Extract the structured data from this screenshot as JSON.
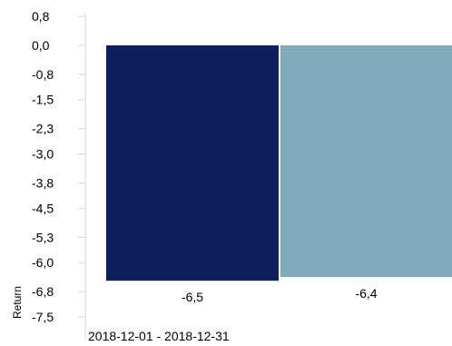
{
  "chart_data": {
    "type": "bar",
    "title": "",
    "xlabel": "",
    "ylabel": "Return",
    "categories": [
      "2018-12-01 - 2018-12-31"
    ],
    "series": [
      {
        "color": "#0e1f5b",
        "values": [
          -6.5
        ]
      },
      {
        "color": "#80aabb",
        "values": [
          -6.4
        ]
      }
    ],
    "data_labels": [
      "-6,5",
      "-6,4"
    ],
    "yticks": [
      0.8,
      0.0,
      -0.8,
      -1.5,
      -2.3,
      -3.0,
      -3.8,
      -4.5,
      -5.3,
      -6.0,
      -6.8,
      -7.5
    ],
    "ytick_labels": [
      "0,8",
      "0,0",
      "-0,8",
      "-1,5",
      "-2,3",
      "-3,0",
      "-3,8",
      "-4,5",
      "-5,3",
      "-6,0",
      "-6,8",
      "-7,5"
    ],
    "ylim": [
      -7.5,
      0.8
    ],
    "grid": false,
    "legend": "none"
  }
}
